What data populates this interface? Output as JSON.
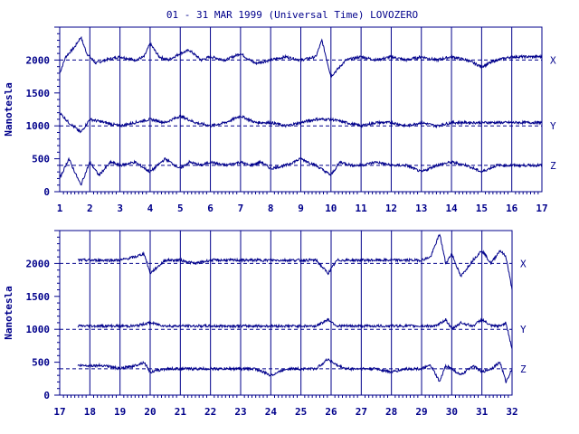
{
  "title": "01 - 31 MAR 1999 (Universal Time) LOVOZERO",
  "colors": {
    "ink": "#00008b",
    "background": "#ffffff"
  },
  "chart_data": [
    {
      "type": "line",
      "panel": "top",
      "xlabel": "",
      "ylabel": "Nanotesla",
      "xlim": [
        1,
        17
      ],
      "ylim": [
        0,
        2500
      ],
      "x_ticks": [
        "1",
        "2",
        "3",
        "4",
        "5",
        "6",
        "7",
        "8",
        "9",
        "10",
        "11",
        "12",
        "13",
        "14",
        "15",
        "16",
        "17"
      ],
      "y_ticks": [
        "0",
        "500",
        "1000",
        "1500",
        "2000"
      ],
      "grid": "vertical lines at each day",
      "series": [
        {
          "name": "X",
          "baseline": 2000,
          "x": [
            1.0,
            1.2,
            1.5,
            1.7,
            1.9,
            2.2,
            2.5,
            3.0,
            3.5,
            3.8,
            4.0,
            4.3,
            4.6,
            5.0,
            5.3,
            5.7,
            6.0,
            6.5,
            7.0,
            7.3,
            7.5,
            8.0,
            8.5,
            9.0,
            9.5,
            9.7,
            10.0,
            10.5,
            11.0,
            11.5,
            12.0,
            12.5,
            13.0,
            13.5,
            14.0,
            14.5,
            15.0,
            15.5,
            16.0,
            16.5,
            17.0
          ],
          "values": [
            1800,
            2050,
            2200,
            2350,
            2100,
            1950,
            2000,
            2050,
            2000,
            2050,
            2250,
            2050,
            2000,
            2100,
            2150,
            2000,
            2050,
            2000,
            2100,
            2000,
            1950,
            2000,
            2050,
            2000,
            2050,
            2300,
            1750,
            2000,
            2050,
            2000,
            2050,
            2000,
            2050,
            2000,
            2050,
            2000,
            1900,
            2000,
            2050,
            2050,
            2050
          ]
        },
        {
          "name": "Y",
          "baseline": 1000,
          "x": [
            1.0,
            1.3,
            1.7,
            2.0,
            2.5,
            3.0,
            3.5,
            4.0,
            4.5,
            5.0,
            5.5,
            6.0,
            6.5,
            7.0,
            7.5,
            8.0,
            8.5,
            9.0,
            9.5,
            10.0,
            10.5,
            11.0,
            11.5,
            12.0,
            12.5,
            13.0,
            13.5,
            14.0,
            14.5,
            15.0,
            15.5,
            16.0,
            16.5,
            17.0
          ],
          "values": [
            1200,
            1050,
            900,
            1100,
            1050,
            1000,
            1050,
            1100,
            1050,
            1150,
            1050,
            1000,
            1050,
            1150,
            1050,
            1050,
            1000,
            1050,
            1100,
            1100,
            1050,
            1000,
            1050,
            1050,
            1000,
            1050,
            1000,
            1050,
            1050,
            1050,
            1050,
            1050,
            1050,
            1050
          ]
        },
        {
          "name": "Z",
          "baseline": 400,
          "x": [
            1.0,
            1.3,
            1.7,
            2.0,
            2.3,
            2.7,
            3.0,
            3.5,
            4.0,
            4.5,
            5.0,
            5.3,
            5.7,
            6.0,
            6.5,
            7.0,
            7.3,
            7.7,
            8.0,
            8.5,
            9.0,
            9.5,
            10.0,
            10.3,
            10.7,
            11.0,
            11.5,
            12.0,
            12.5,
            13.0,
            13.5,
            14.0,
            14.5,
            15.0,
            15.5,
            16.0,
            16.5,
            17.0
          ],
          "values": [
            200,
            500,
            100,
            450,
            250,
            450,
            400,
            450,
            300,
            500,
            350,
            450,
            400,
            450,
            400,
            450,
            400,
            450,
            350,
            400,
            500,
            400,
            250,
            450,
            400,
            400,
            450,
            400,
            400,
            300,
            400,
            450,
            400,
            300,
            400,
            400,
            400,
            400
          ]
        }
      ]
    },
    {
      "type": "line",
      "panel": "bottom",
      "xlabel": "",
      "ylabel": "Nanotesla",
      "xlim": [
        17,
        32
      ],
      "ylim": [
        0,
        2500
      ],
      "x_ticks": [
        "17",
        "18",
        "19",
        "20",
        "21",
        "22",
        "23",
        "24",
        "25",
        "26",
        "27",
        "28",
        "29",
        "30",
        "31",
        "32"
      ],
      "y_ticks": [
        "0",
        "500",
        "1000",
        "1500",
        "2000"
      ],
      "grid": "vertical lines at each day",
      "series": [
        {
          "name": "X",
          "baseline": 2000,
          "x": [
            17.6,
            18.0,
            18.5,
            19.0,
            19.5,
            19.8,
            20.0,
            20.5,
            21.0,
            21.5,
            22.0,
            22.5,
            23.0,
            23.5,
            24.0,
            24.5,
            25.0,
            25.5,
            25.9,
            26.2,
            26.5,
            27.0,
            27.5,
            28.0,
            28.5,
            29.0,
            29.3,
            29.6,
            29.8,
            30.0,
            30.3,
            30.7,
            31.0,
            31.3,
            31.6,
            31.8,
            32.0
          ],
          "values": [
            2050,
            2050,
            2050,
            2050,
            2100,
            2150,
            1850,
            2050,
            2050,
            2000,
            2050,
            2050,
            2050,
            2050,
            2050,
            2050,
            2050,
            2050,
            1850,
            2050,
            2050,
            2050,
            2050,
            2050,
            2050,
            2050,
            2100,
            2450,
            2000,
            2150,
            1800,
            2050,
            2200,
            2000,
            2200,
            2100,
            1600
          ]
        },
        {
          "name": "Y",
          "baseline": 1000,
          "x": [
            17.6,
            18.0,
            18.5,
            19.0,
            19.5,
            20.0,
            20.5,
            21.0,
            21.5,
            22.0,
            22.5,
            23.0,
            23.5,
            24.0,
            24.5,
            25.0,
            25.5,
            25.9,
            26.2,
            26.5,
            27.0,
            27.5,
            28.0,
            28.5,
            29.0,
            29.5,
            29.8,
            30.0,
            30.3,
            30.7,
            31.0,
            31.3,
            31.6,
            31.8,
            32.0
          ],
          "values": [
            1050,
            1050,
            1050,
            1050,
            1050,
            1100,
            1050,
            1050,
            1050,
            1050,
            1050,
            1050,
            1050,
            1050,
            1050,
            1050,
            1050,
            1150,
            1050,
            1050,
            1050,
            1050,
            1050,
            1050,
            1050,
            1050,
            1150,
            1000,
            1100,
            1050,
            1150,
            1050,
            1050,
            1100,
            700
          ]
        },
        {
          "name": "Z",
          "baseline": 400,
          "x": [
            17.6,
            18.0,
            18.5,
            19.0,
            19.5,
            19.8,
            20.0,
            20.5,
            21.0,
            21.5,
            22.0,
            22.5,
            23.0,
            23.5,
            24.0,
            24.5,
            25.0,
            25.5,
            25.9,
            26.2,
            26.5,
            27.0,
            27.5,
            28.0,
            28.5,
            29.0,
            29.3,
            29.6,
            29.8,
            30.0,
            30.3,
            30.7,
            31.0,
            31.3,
            31.6,
            31.8,
            32.0
          ],
          "values": [
            450,
            450,
            450,
            400,
            450,
            500,
            350,
            400,
            400,
            400,
            400,
            400,
            400,
            400,
            300,
            400,
            400,
            400,
            550,
            450,
            400,
            400,
            400,
            350,
            400,
            400,
            450,
            200,
            450,
            400,
            300,
            450,
            350,
            400,
            500,
            200,
            400
          ]
        }
      ]
    }
  ]
}
